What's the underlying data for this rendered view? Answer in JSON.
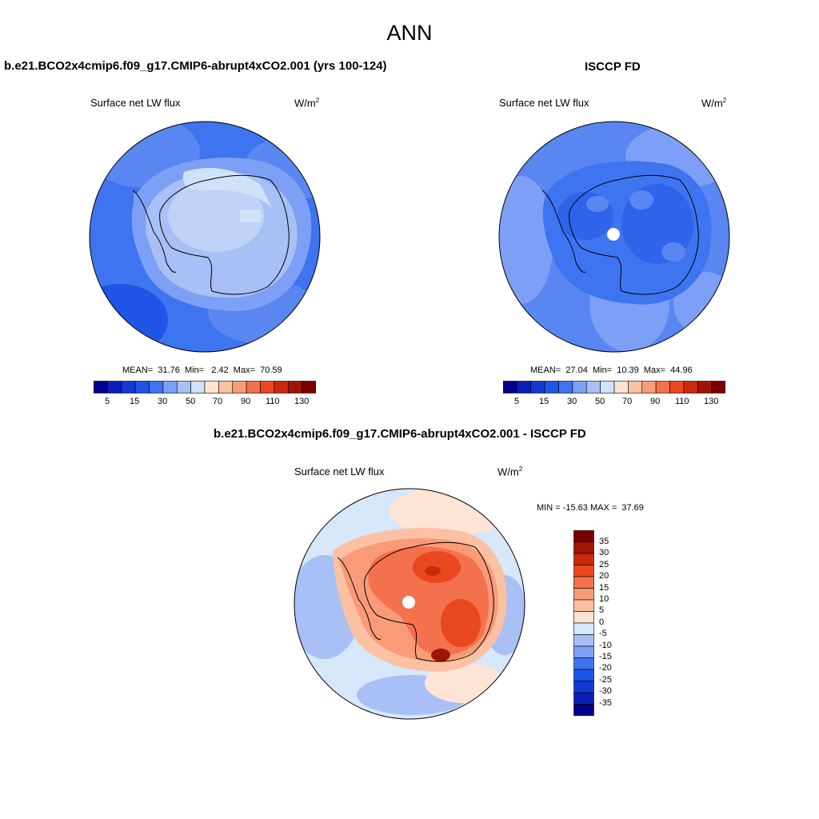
{
  "page": {
    "title": "ANN"
  },
  "colors": {
    "seq": [
      "#00008b",
      "#0a1fb4",
      "#1439d2",
      "#1e55e6",
      "#3f74f0",
      "#7d9ff5",
      "#a8c0f5",
      "#d0e2f8",
      "#ffe3d2",
      "#fcc0a3",
      "#f99b78",
      "#f3714c",
      "#e9481f",
      "#c92b0c",
      "#a01405",
      "#7a0000"
    ],
    "diff": [
      "#00008b",
      "#0a1fb4",
      "#1439d2",
      "#1e55e6",
      "#3f74f0",
      "#7d9ff5",
      "#a8c0f5",
      "#d6e7fa",
      "#fde4d5",
      "#fcc0a3",
      "#f99b78",
      "#f3714c",
      "#e9481f",
      "#c92b0c",
      "#a01405",
      "#7a0000"
    ]
  },
  "panels": {
    "model": {
      "title": "b.e21.BCO2x4cmip6.f09_g17.CMIP6-abrupt4xCO2.001 (yrs 100-124)",
      "variable": "Surface net LW flux",
      "units": "W/m",
      "units_sup": "2",
      "stats_label": "MEAN=  31.76  Min=   2.42  Max=  70.59",
      "colorbar_ticks": [
        "5",
        "15",
        "30",
        "50",
        "70",
        "90",
        "110",
        "130"
      ]
    },
    "obs": {
      "title": "ISCCP FD",
      "variable": "Surface net LW flux",
      "units": "W/m",
      "units_sup": "2",
      "stats_label": "MEAN=  27.04  Min=  10.39  Max=  44.96",
      "colorbar_ticks": [
        "5",
        "15",
        "30",
        "50",
        "70",
        "90",
        "110",
        "130"
      ]
    },
    "diff": {
      "title": "b.e21.BCO2x4cmip6.f09_g17.CMIP6-abrupt4xCO2.001 - ISCCP FD",
      "variable": "Surface net LW flux",
      "units": "W/m",
      "units_sup": "2",
      "stats_label": "MIN = -15.63 MAX =  37.69",
      "colorbar_ticks": [
        "35",
        "30",
        "25",
        "20",
        "15",
        "10",
        "5",
        "0",
        "-5",
        "-10",
        "-15",
        "-20",
        "-25",
        "-30",
        "-35"
      ]
    }
  }
}
